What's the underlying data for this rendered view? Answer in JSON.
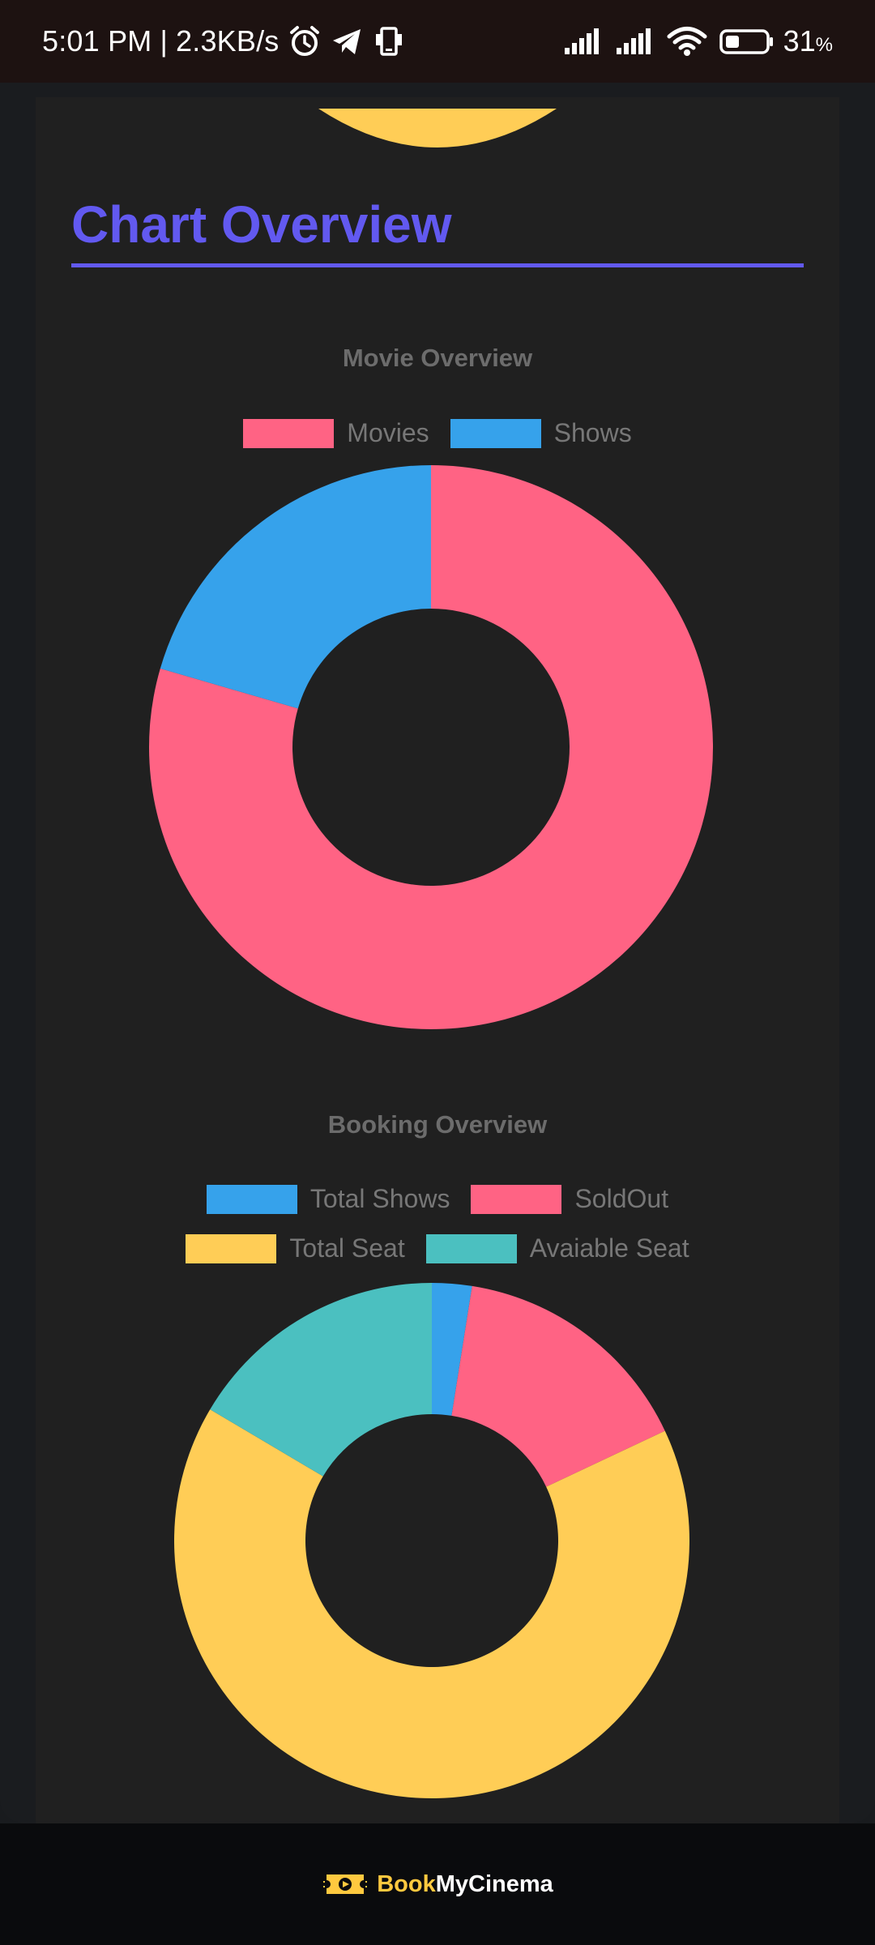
{
  "status_bar": {
    "time": "5:01 PM",
    "separator": "|",
    "net_speed": "2.3KB/s",
    "battery_value": "31",
    "battery_unit": "%"
  },
  "header": {
    "title": "Chart Overview"
  },
  "colors": {
    "accent": "#6259f0",
    "pink": "#ff6384",
    "blue": "#36a2eb",
    "yellow": "#ffcd56",
    "teal": "#4bc0c0",
    "card": "#202020"
  },
  "chart_data": [
    {
      "type": "pie",
      "title": "Movie Overview",
      "categories": [
        "Movies",
        "Shows"
      ],
      "values": [
        79.5,
        20.5
      ],
      "legend_position": "top"
    },
    {
      "type": "pie",
      "title": "Booking Overview",
      "categories": [
        "Total Shows",
        "SoldOut",
        "Total Seat",
        "Avaiable Seat"
      ],
      "values": [
        2.5,
        15.5,
        65.5,
        16.5
      ],
      "legend_position": "top"
    }
  ],
  "footer": {
    "brand_part1": "Book",
    "brand_part2": "MyCinema",
    "logo_icon": "ticket-icon"
  }
}
